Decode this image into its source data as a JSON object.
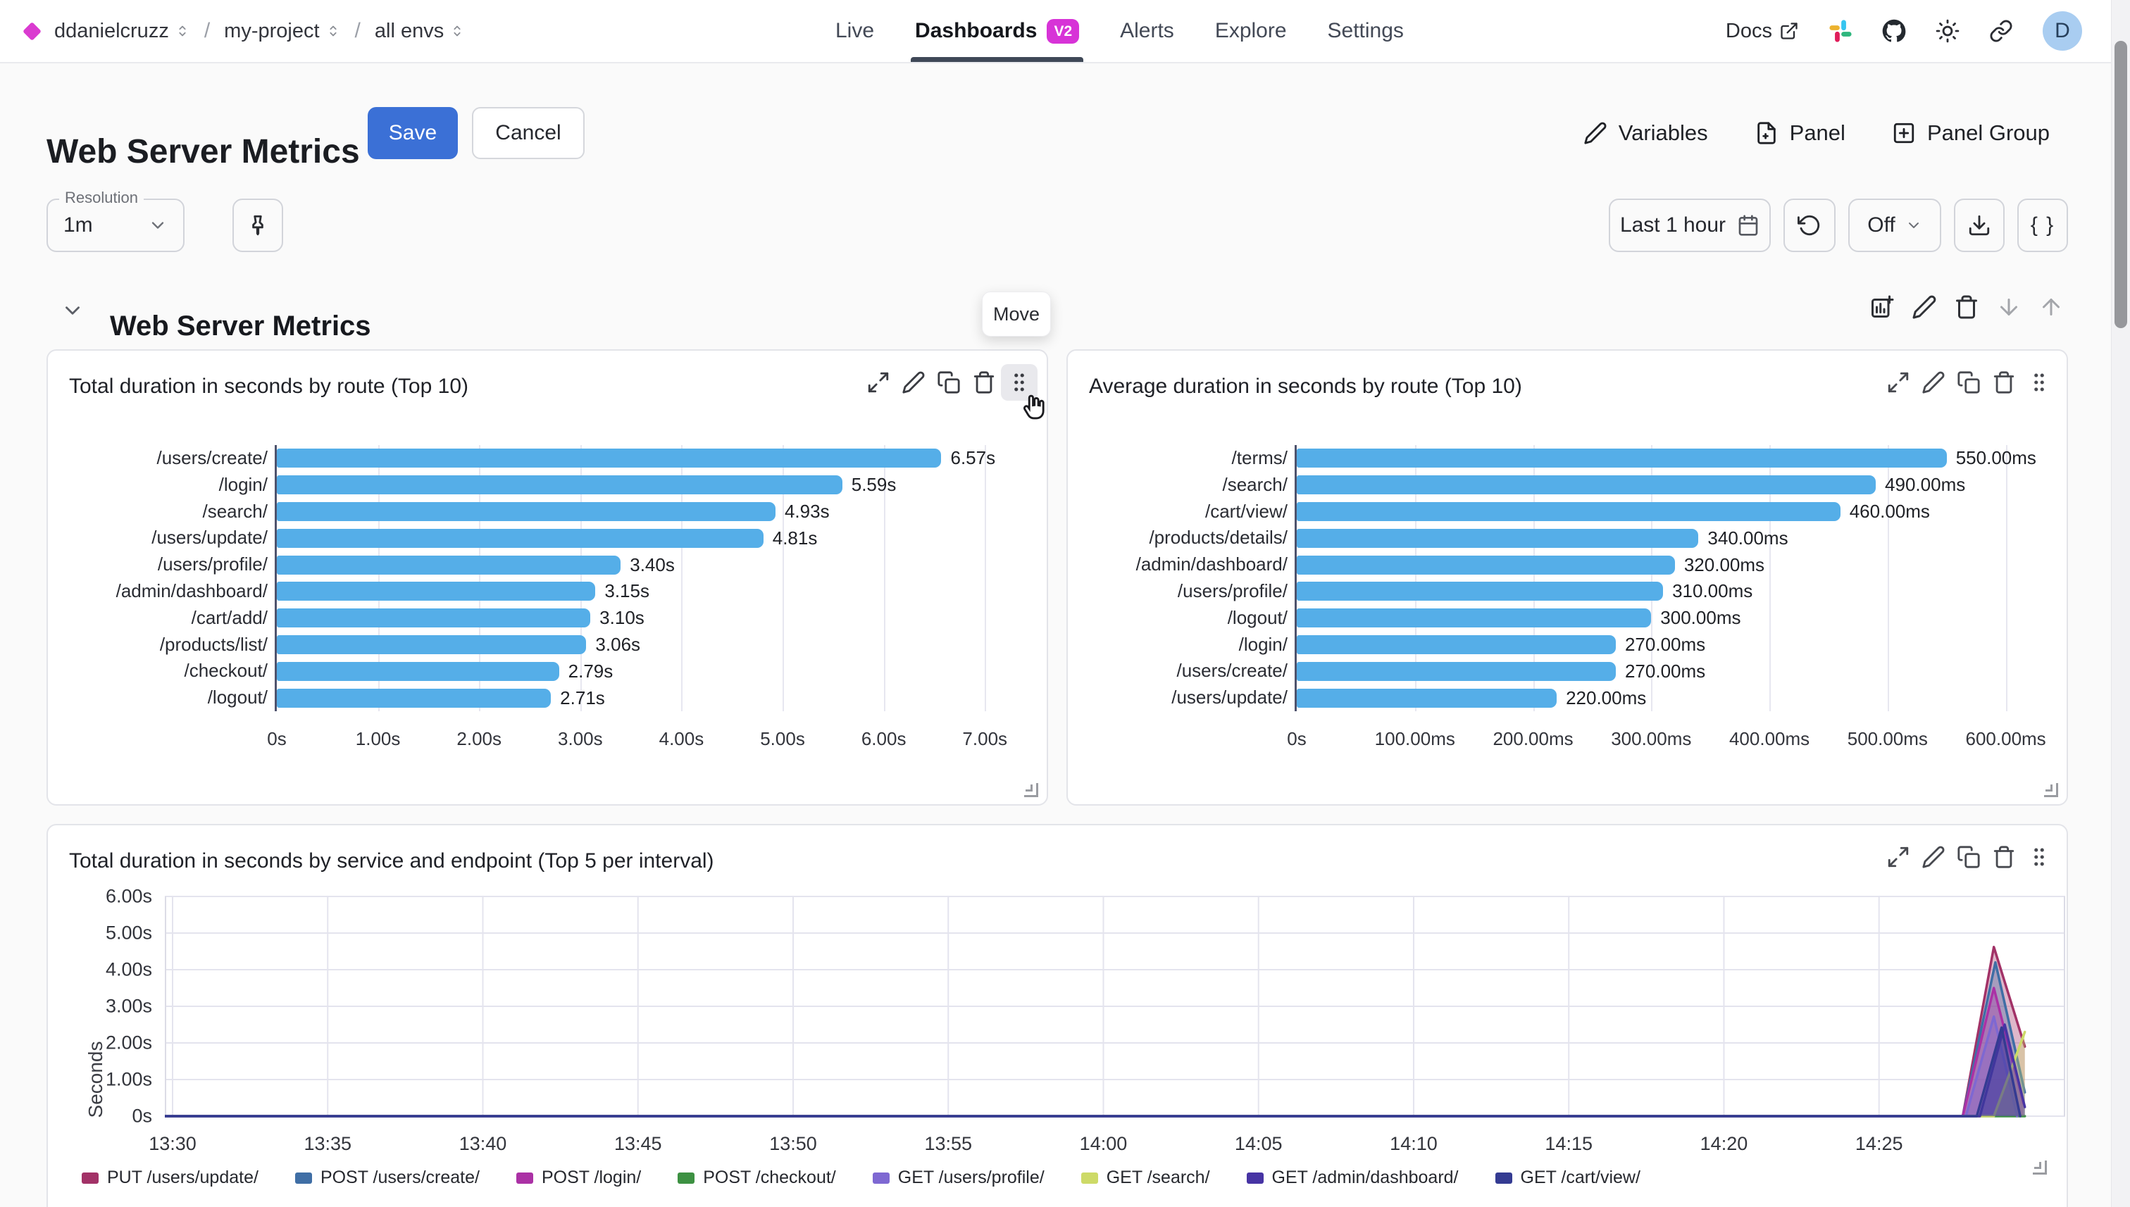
{
  "nav": {
    "org": "ddanielcruzz",
    "project": "my-project",
    "environment": "all envs",
    "separator": "/",
    "tabs": [
      {
        "label": "Live",
        "active": false
      },
      {
        "label": "Dashboards",
        "active": true
      },
      {
        "label": "Alerts",
        "active": false
      },
      {
        "label": "Explore",
        "active": false
      },
      {
        "label": "Settings",
        "active": false
      }
    ],
    "dashboards_badge": "V2",
    "docs_label": "Docs",
    "avatar_initial": "D"
  },
  "header": {
    "title": "Web Server Metrics",
    "save_label": "Save",
    "cancel_label": "Cancel",
    "variables_label": "Variables",
    "panel_label": "Panel",
    "panel_group_label": "Panel Group"
  },
  "toolbar": {
    "resolution_label": "Resolution",
    "resolution_value": "1m",
    "time_range_label": "Last 1 hour",
    "auto_refresh_value": "Off",
    "braces_label": "{ }"
  },
  "section": {
    "title": "Web Server Metrics",
    "move_tooltip": "Move"
  },
  "panels": {
    "left": {
      "title": "Total duration in seconds by route (Top 10)"
    },
    "right": {
      "title": "Average duration in seconds by route (Top 10)"
    },
    "bottom": {
      "title": "Total duration in seconds by service and endpoint (Top 5 per interval)"
    }
  },
  "colors": {
    "accent_magenta": "#d733d7",
    "save_blue": "#3b70d6",
    "bar_blue": "#55aee8",
    "grid": "#e7e7f0",
    "axis": "#4e536d"
  },
  "icon_names": [
    "diamond-logo",
    "unfold-icon",
    "external-link-icon",
    "slack-icon",
    "github-icon",
    "brightness-icon",
    "link-icon",
    "pin-icon",
    "calendar-icon",
    "refresh-icon",
    "chevron-down-icon",
    "download-icon",
    "braces-icon",
    "pencil-icon",
    "file-plus-icon",
    "plus-square-icon",
    "chart-plus-icon",
    "trash-icon",
    "arrow-down-icon",
    "arrow-up-icon",
    "expand-icon",
    "copy-icon",
    "drag-handle-icon",
    "hand-cursor-icon",
    "resize-corner-icon"
  ],
  "chart_data": [
    {
      "type": "bar",
      "orientation": "horizontal",
      "title": "Total duration in seconds by route (Top 10)",
      "categories": [
        "/users/create/",
        "/login/",
        "/search/",
        "/users/update/",
        "/users/profile/",
        "/admin/dashboard/",
        "/cart/add/",
        "/products/list/",
        "/checkout/",
        "/logout/"
      ],
      "values": [
        6.57,
        5.59,
        4.93,
        4.81,
        3.4,
        3.15,
        3.1,
        3.06,
        2.79,
        2.71
      ],
      "value_labels": [
        "6.57s",
        "5.59s",
        "4.93s",
        "4.81s",
        "3.40s",
        "3.15s",
        "3.10s",
        "3.06s",
        "2.79s",
        "2.71s"
      ],
      "x_ticks": [
        {
          "value": 0,
          "label": "0s"
        },
        {
          "value": 1,
          "label": "1.00s"
        },
        {
          "value": 2,
          "label": "2.00s"
        },
        {
          "value": 3,
          "label": "3.00s"
        },
        {
          "value": 4,
          "label": "4.00s"
        },
        {
          "value": 5,
          "label": "5.00s"
        },
        {
          "value": 6,
          "label": "6.00s"
        },
        {
          "value": 7,
          "label": "7.00s"
        }
      ],
      "x_max": 7.43,
      "unit": "seconds"
    },
    {
      "type": "bar",
      "orientation": "horizontal",
      "title": "Average duration in seconds by route (Top 10)",
      "categories": [
        "/terms/",
        "/search/",
        "/cart/view/",
        "/products/details/",
        "/admin/dashboard/",
        "/users/profile/",
        "/logout/",
        "/login/",
        "/users/create/",
        "/users/update/"
      ],
      "values": [
        550,
        490,
        460,
        340,
        320,
        310,
        300,
        270,
        270,
        220
      ],
      "value_labels": [
        "550.00ms",
        "490.00ms",
        "460.00ms",
        "340.00ms",
        "320.00ms",
        "310.00ms",
        "300.00ms",
        "270.00ms",
        "270.00ms",
        "220.00ms"
      ],
      "x_ticks": [
        {
          "value": 0,
          "label": "0s"
        },
        {
          "value": 100,
          "label": "100.00ms"
        },
        {
          "value": 200,
          "label": "200.00ms"
        },
        {
          "value": 300,
          "label": "300.00ms"
        },
        {
          "value": 400,
          "label": "400.00ms"
        },
        {
          "value": 500,
          "label": "500.00ms"
        },
        {
          "value": 600,
          "label": "600.00ms"
        }
      ],
      "x_max": 636,
      "unit": "milliseconds"
    },
    {
      "type": "line",
      "title": "Total duration in seconds by service and endpoint (Top 5 per interval)",
      "ylabel": "Seconds",
      "y_ticks": [
        {
          "value": 0,
          "label": "0s"
        },
        {
          "value": 1,
          "label": "1.00s"
        },
        {
          "value": 2,
          "label": "2.00s"
        },
        {
          "value": 3,
          "label": "3.00s"
        },
        {
          "value": 4,
          "label": "4.00s"
        },
        {
          "value": 5,
          "label": "5.00s"
        },
        {
          "value": 6,
          "label": "6.00s"
        }
      ],
      "x_ticks": [
        {
          "minute": 0,
          "label": "13:30"
        },
        {
          "minute": 5,
          "label": "13:35"
        },
        {
          "minute": 10,
          "label": "13:40"
        },
        {
          "minute": 15,
          "label": "13:45"
        },
        {
          "minute": 20,
          "label": "13:50"
        },
        {
          "minute": 25,
          "label": "13:55"
        },
        {
          "minute": 30,
          "label": "14:00"
        },
        {
          "minute": 35,
          "label": "14:05"
        },
        {
          "minute": 40,
          "label": "14:10"
        },
        {
          "minute": 45,
          "label": "14:15"
        },
        {
          "minute": 50,
          "label": "14:20"
        },
        {
          "minute": 55,
          "label": "14:25"
        }
      ],
      "x_domain_minutes": [
        -0.25,
        61
      ],
      "y_max": 6,
      "grid": true,
      "legend_position": "bottom",
      "series": [
        {
          "name": "PUT /users/update/",
          "color": "#a23267",
          "points": [
            [
              -0.25,
              0
            ],
            [
              57.7,
              0
            ],
            [
              58.7,
              4.62
            ],
            [
              59.7,
              1.9
            ]
          ]
        },
        {
          "name": "POST /users/create/",
          "color": "#3f6ea5",
          "points": [
            [
              -0.25,
              0
            ],
            [
              57.7,
              0
            ],
            [
              58.75,
              4.2
            ],
            [
              59.7,
              0.65
            ]
          ]
        },
        {
          "name": "POST /login/",
          "color": "#ab31a5",
          "points": [
            [
              -0.25,
              0
            ],
            [
              57.7,
              0
            ],
            [
              58.7,
              3.5
            ],
            [
              59.65,
              0.35
            ]
          ]
        },
        {
          "name": "POST /checkout/",
          "color": "#3d9142",
          "points": [
            [
              -0.25,
              0
            ],
            [
              59.7,
              0
            ]
          ]
        },
        {
          "name": "GET /users/profile/",
          "color": "#7e68d2",
          "points": [
            [
              -0.25,
              0
            ],
            [
              57.8,
              0
            ],
            [
              58.7,
              2.72
            ],
            [
              59.45,
              0
            ]
          ]
        },
        {
          "name": "GET /search/",
          "color": "#cdda67",
          "points": [
            [
              -0.25,
              0
            ],
            [
              58.7,
              0
            ],
            [
              59.7,
              2.3
            ]
          ]
        },
        {
          "name": "GET /admin/dashboard/",
          "color": "#4734a4",
          "points": [
            [
              -0.25,
              0
            ],
            [
              58.25,
              0
            ],
            [
              59.05,
              2.5
            ],
            [
              59.7,
              0.25
            ]
          ]
        },
        {
          "name": "GET /cart/view/",
          "color": "#343b92",
          "points": [
            [
              -0.25,
              0
            ],
            [
              58.15,
              0
            ],
            [
              58.95,
              2.42
            ],
            [
              59.55,
              0
            ]
          ]
        }
      ]
    }
  ]
}
